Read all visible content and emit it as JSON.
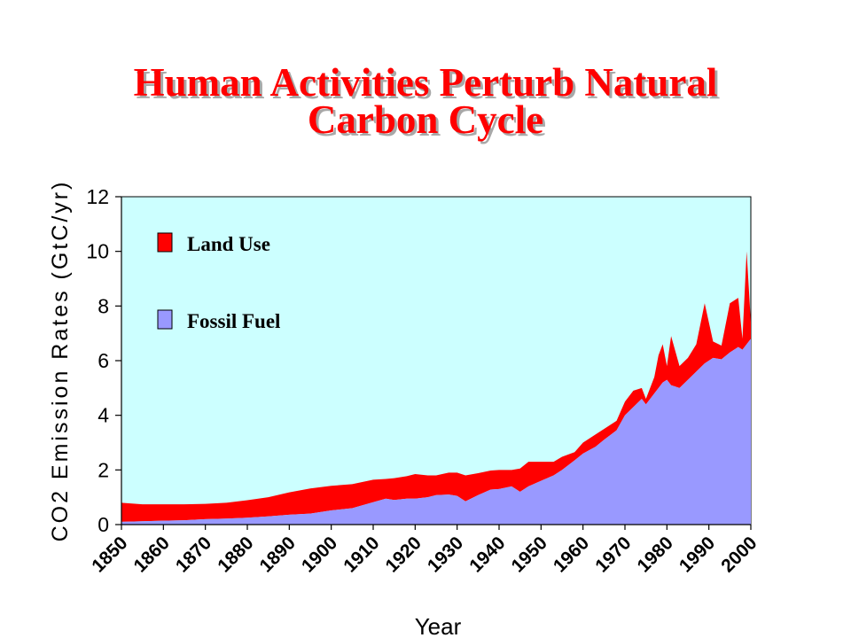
{
  "slide": {
    "title_line1": "Human Activities Perturb Natural",
    "title_line2": "Carbon Cycle"
  },
  "colors": {
    "plot_background": "#ccffff",
    "land_use": "#ff0000",
    "fossil_fuel": "#9999ff",
    "title": "#ff0000"
  },
  "chart_data": {
    "type": "area",
    "stacked": true,
    "title": "",
    "xlabel": "Year",
    "ylabel": "CO2 Emission Rates (GtC/yr)",
    "xlim": [
      1850,
      2000
    ],
    "ylim": [
      0,
      12
    ],
    "yticks": [
      "0",
      "2",
      "4",
      "6",
      "8",
      "10",
      "12"
    ],
    "xticks": [
      "1850",
      "1860",
      "1870",
      "1880",
      "1890",
      "1900",
      "1910",
      "1920",
      "1930",
      "1940",
      "1950",
      "1960",
      "1970",
      "1980",
      "1990",
      "2000"
    ],
    "grid": false,
    "legend_position": "top-left",
    "x": [
      1850,
      1855,
      1860,
      1865,
      1870,
      1875,
      1880,
      1885,
      1890,
      1895,
      1900,
      1905,
      1910,
      1913,
      1915,
      1918,
      1920,
      1923,
      1925,
      1928,
      1930,
      1932,
      1935,
      1938,
      1940,
      1943,
      1945,
      1947,
      1950,
      1953,
      1955,
      1958,
      1960,
      1963,
      1965,
      1968,
      1970,
      1972,
      1974,
      1975,
      1977,
      1978,
      1979,
      1980,
      1981,
      1983,
      1985,
      1987,
      1989,
      1991,
      1993,
      1995,
      1997,
      1998,
      1999,
      2000
    ],
    "series": [
      {
        "name": "Fossil Fuel",
        "values": [
          0.1,
          0.12,
          0.14,
          0.16,
          0.2,
          0.22,
          0.25,
          0.3,
          0.36,
          0.4,
          0.52,
          0.6,
          0.82,
          0.95,
          0.9,
          0.95,
          0.95,
          1.0,
          1.08,
          1.1,
          1.05,
          0.85,
          1.08,
          1.28,
          1.3,
          1.4,
          1.2,
          1.4,
          1.6,
          1.8,
          2.0,
          2.35,
          2.6,
          2.85,
          3.1,
          3.45,
          4.0,
          4.3,
          4.6,
          4.4,
          4.8,
          5.0,
          5.2,
          5.3,
          5.1,
          5.0,
          5.3,
          5.6,
          5.9,
          6.1,
          6.05,
          6.3,
          6.5,
          6.4,
          6.6,
          6.8
        ]
      },
      {
        "name": "Land Use",
        "values": [
          0.7,
          0.62,
          0.6,
          0.58,
          0.56,
          0.58,
          0.64,
          0.7,
          0.82,
          0.92,
          0.9,
          0.88,
          0.82,
          0.72,
          0.8,
          0.82,
          0.9,
          0.8,
          0.72,
          0.8,
          0.85,
          0.95,
          0.8,
          0.7,
          0.7,
          0.6,
          0.85,
          0.9,
          0.7,
          0.5,
          0.48,
          0.3,
          0.4,
          0.45,
          0.4,
          0.35,
          0.5,
          0.6,
          0.4,
          0.2,
          0.6,
          1.2,
          1.4,
          0.5,
          1.8,
          0.8,
          0.8,
          1.0,
          2.2,
          0.6,
          0.5,
          1.8,
          1.8,
          0.4,
          3.4,
          0.6
        ]
      }
    ]
  }
}
